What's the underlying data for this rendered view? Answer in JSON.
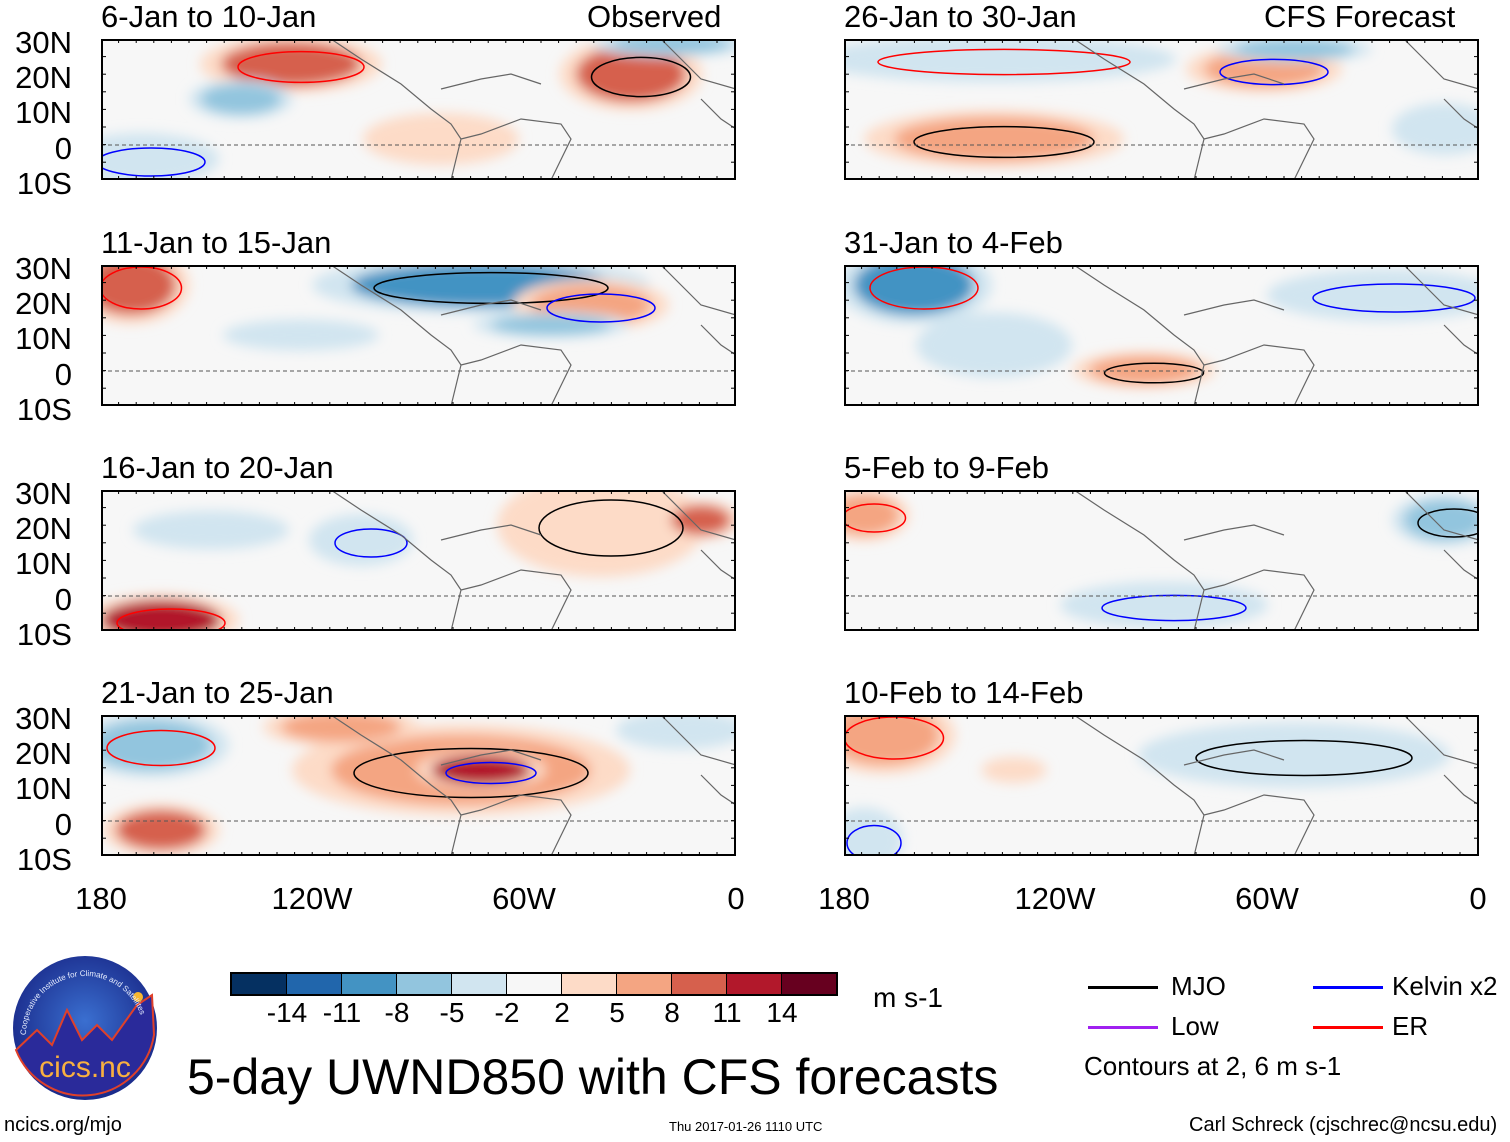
{
  "colors": {
    "mjo": "#000000",
    "kelvin": "#0000ff",
    "low": "#a020f0",
    "er": "#ff0000",
    "scale": [
      "#053061",
      "#2166ac",
      "#4393c3",
      "#92c5de",
      "#d1e5f0",
      "#f7f7f7",
      "#fddbc7",
      "#f4a582",
      "#d6604d",
      "#b2182b",
      "#67001f"
    ]
  },
  "columns": {
    "left_label": "Observed",
    "right_label": "CFS Forecast"
  },
  "panels": [
    {
      "title": "6-Jan to 10-Jan"
    },
    {
      "title": "11-Jan to 15-Jan"
    },
    {
      "title": "16-Jan to 20-Jan"
    },
    {
      "title": "21-Jan to 25-Jan"
    },
    {
      "title": "26-Jan to 30-Jan"
    },
    {
      "title": "31-Jan to 4-Feb"
    },
    {
      "title": "5-Feb to 9-Feb"
    },
    {
      "title": "10-Feb to 14-Feb"
    }
  ],
  "lat_labels": [
    "30N",
    "20N",
    "10N",
    "0",
    "10S"
  ],
  "lon_labels": [
    "180",
    "120W",
    "60W",
    "0"
  ],
  "colorbar": {
    "ticks": [
      "-14",
      "-11",
      "-8",
      "-5",
      "-2",
      "2",
      "5",
      "8",
      "11",
      "14"
    ],
    "units": "m s-1"
  },
  "legend": {
    "mjo": "MJO",
    "kelvin": "Kelvin x2",
    "low": "Low",
    "er": "ER",
    "note": "Contours at 2, 6 m s-1"
  },
  "title": "5-day UWND850 with CFS forecasts",
  "footer": {
    "url": "ncics.org/mjo",
    "timestamp": "Thu 2017-01-26 1110 UTC",
    "credit": "Carl Schreck (cjschrec@ncsu.edu)"
  },
  "logo": {
    "name": "cics.nc",
    "arc": "Cooperative Institute for Climate and Satellites"
  }
}
